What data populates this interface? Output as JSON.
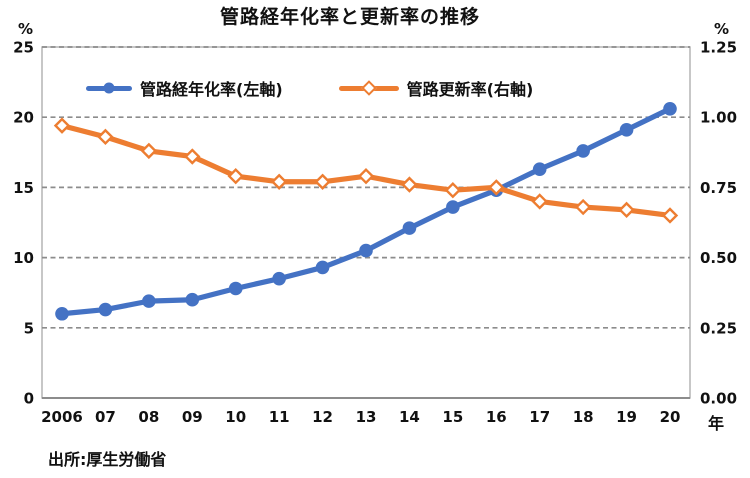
{
  "title": "管路経年化率と更新率の推移",
  "source": "出所:厚生労働省",
  "axes": {
    "left": {
      "unit": "%",
      "ticks": [
        "25",
        "20",
        "15",
        "10",
        "5",
        "0"
      ]
    },
    "right": {
      "unit": "%",
      "ticks": [
        "1.25",
        "1.00",
        "0.75",
        "0.50",
        "0.25",
        "0.00"
      ]
    },
    "x_unit": "年"
  },
  "colors": {
    "aging_blue": "#4472C4",
    "renewal_orange": "#ED7D31",
    "gridline_gray": "#8C8C8C",
    "border_gray": "#AFAFAF",
    "axis_line_gray": "#8C8C8C"
  },
  "chart_data": {
    "type": "line",
    "title": "管路経年化率と更新率の推移",
    "categories": [
      "2006",
      "07",
      "08",
      "09",
      "10",
      "11",
      "12",
      "13",
      "14",
      "15",
      "16",
      "17",
      "18",
      "19",
      "20"
    ],
    "series": [
      {
        "name": "管路経年化率(左軸)",
        "axis": "left",
        "color": "#4472C4",
        "marker": "circle",
        "values": [
          6.0,
          6.3,
          6.9,
          7.0,
          7.8,
          8.5,
          9.3,
          10.5,
          12.1,
          13.6,
          14.8,
          16.3,
          17.6,
          19.1,
          20.6
        ]
      },
      {
        "name": "管路更新率(右軸)",
        "axis": "right",
        "color": "#ED7D31",
        "marker": "diamond",
        "values": [
          0.97,
          0.93,
          0.88,
          0.86,
          0.79,
          0.77,
          0.77,
          0.79,
          0.76,
          0.74,
          0.75,
          0.7,
          0.68,
          0.67,
          0.65
        ]
      }
    ],
    "left_axis": {
      "label": "%",
      "min": 0,
      "max": 25,
      "tick_step": 5
    },
    "right_axis": {
      "label": "%",
      "min": 0,
      "max": 1.25,
      "tick_step": 0.25
    },
    "xlabel": "年",
    "grid": true,
    "gridline_style": "dashed",
    "legend_position": "top-inside"
  }
}
